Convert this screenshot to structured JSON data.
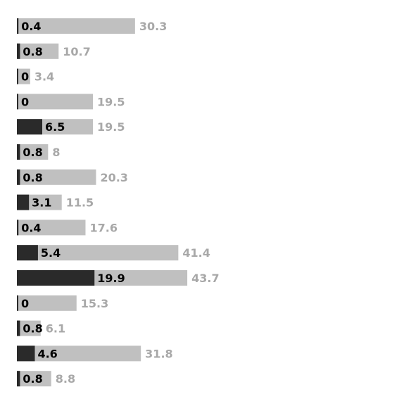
{
  "chart_data": {
    "type": "bar",
    "orientation": "horizontal",
    "layout": "overlay",
    "grid": false,
    "legend": "none",
    "colors": {
      "series_dark": "#2a2a2a",
      "series_light": "#c0c0c0",
      "label_light": "#a8a8a8",
      "label_dark": "#000000"
    },
    "series": [
      {
        "values": [
          0.4,
          0.8,
          0,
          0,
          6.5,
          0.8,
          0.8,
          3.1,
          0.4,
          5.4,
          19.9,
          0,
          0.8,
          4.6,
          0.8
        ]
      },
      {
        "values": [
          30.3,
          10.7,
          3.4,
          19.5,
          19.5,
          8,
          20.3,
          11.5,
          17.6,
          41.4,
          43.7,
          15.3,
          6.1,
          31.8,
          8.8
        ]
      }
    ],
    "labels_dark": [
      "0.4",
      "0.8",
      "0",
      "0",
      "6.5",
      "0.8",
      "0.8",
      "3.1",
      "0.4",
      "5.4",
      "19.9",
      "0",
      "0.8",
      "4.6",
      "0.8"
    ],
    "labels_light": [
      "30.3",
      "10.7",
      "3.4",
      "19.5",
      "19.5",
      "8",
      "20.3",
      "11.5",
      "17.6",
      "41.4",
      "43.7",
      "15.3",
      "6.1",
      "31.8",
      "8.8"
    ]
  }
}
